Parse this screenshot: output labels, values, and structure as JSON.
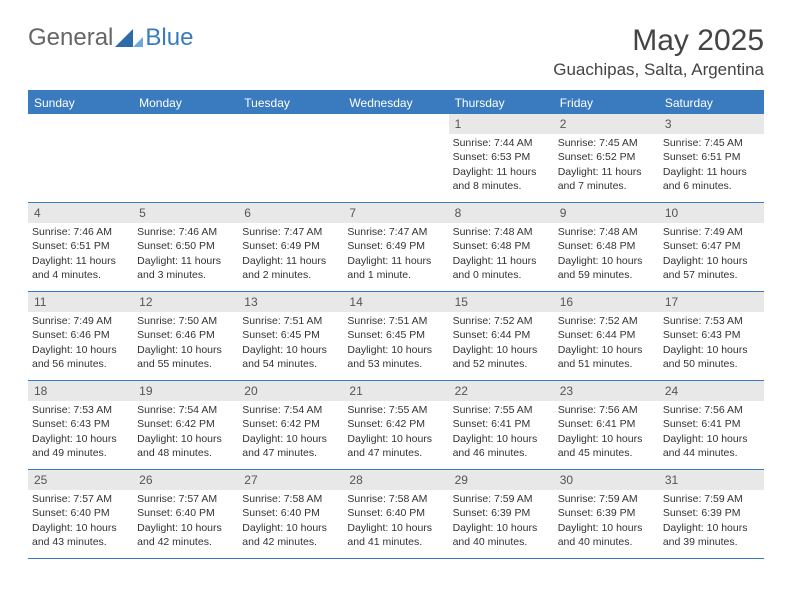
{
  "logo": {
    "general": "General",
    "blue": "Blue"
  },
  "title": {
    "month": "May 2025",
    "location": "Guachipas, Salta, Argentina"
  },
  "colors": {
    "accent": "#3a7bbf",
    "header_bg": "#3a7bbf",
    "daynum_bg": "#e8e8e8"
  },
  "weekdays": [
    "Sunday",
    "Monday",
    "Tuesday",
    "Wednesday",
    "Thursday",
    "Friday",
    "Saturday"
  ],
  "weeks": [
    [
      {
        "num": "",
        "sunrise": "",
        "sunset": "",
        "daylight": ""
      },
      {
        "num": "",
        "sunrise": "",
        "sunset": "",
        "daylight": ""
      },
      {
        "num": "",
        "sunrise": "",
        "sunset": "",
        "daylight": ""
      },
      {
        "num": "",
        "sunrise": "",
        "sunset": "",
        "daylight": ""
      },
      {
        "num": "1",
        "sunrise": "Sunrise: 7:44 AM",
        "sunset": "Sunset: 6:53 PM",
        "daylight": "Daylight: 11 hours and 8 minutes."
      },
      {
        "num": "2",
        "sunrise": "Sunrise: 7:45 AM",
        "sunset": "Sunset: 6:52 PM",
        "daylight": "Daylight: 11 hours and 7 minutes."
      },
      {
        "num": "3",
        "sunrise": "Sunrise: 7:45 AM",
        "sunset": "Sunset: 6:51 PM",
        "daylight": "Daylight: 11 hours and 6 minutes."
      }
    ],
    [
      {
        "num": "4",
        "sunrise": "Sunrise: 7:46 AM",
        "sunset": "Sunset: 6:51 PM",
        "daylight": "Daylight: 11 hours and 4 minutes."
      },
      {
        "num": "5",
        "sunrise": "Sunrise: 7:46 AM",
        "sunset": "Sunset: 6:50 PM",
        "daylight": "Daylight: 11 hours and 3 minutes."
      },
      {
        "num": "6",
        "sunrise": "Sunrise: 7:47 AM",
        "sunset": "Sunset: 6:49 PM",
        "daylight": "Daylight: 11 hours and 2 minutes."
      },
      {
        "num": "7",
        "sunrise": "Sunrise: 7:47 AM",
        "sunset": "Sunset: 6:49 PM",
        "daylight": "Daylight: 11 hours and 1 minute."
      },
      {
        "num": "8",
        "sunrise": "Sunrise: 7:48 AM",
        "sunset": "Sunset: 6:48 PM",
        "daylight": "Daylight: 11 hours and 0 minutes."
      },
      {
        "num": "9",
        "sunrise": "Sunrise: 7:48 AM",
        "sunset": "Sunset: 6:48 PM",
        "daylight": "Daylight: 10 hours and 59 minutes."
      },
      {
        "num": "10",
        "sunrise": "Sunrise: 7:49 AM",
        "sunset": "Sunset: 6:47 PM",
        "daylight": "Daylight: 10 hours and 57 minutes."
      }
    ],
    [
      {
        "num": "11",
        "sunrise": "Sunrise: 7:49 AM",
        "sunset": "Sunset: 6:46 PM",
        "daylight": "Daylight: 10 hours and 56 minutes."
      },
      {
        "num": "12",
        "sunrise": "Sunrise: 7:50 AM",
        "sunset": "Sunset: 6:46 PM",
        "daylight": "Daylight: 10 hours and 55 minutes."
      },
      {
        "num": "13",
        "sunrise": "Sunrise: 7:51 AM",
        "sunset": "Sunset: 6:45 PM",
        "daylight": "Daylight: 10 hours and 54 minutes."
      },
      {
        "num": "14",
        "sunrise": "Sunrise: 7:51 AM",
        "sunset": "Sunset: 6:45 PM",
        "daylight": "Daylight: 10 hours and 53 minutes."
      },
      {
        "num": "15",
        "sunrise": "Sunrise: 7:52 AM",
        "sunset": "Sunset: 6:44 PM",
        "daylight": "Daylight: 10 hours and 52 minutes."
      },
      {
        "num": "16",
        "sunrise": "Sunrise: 7:52 AM",
        "sunset": "Sunset: 6:44 PM",
        "daylight": "Daylight: 10 hours and 51 minutes."
      },
      {
        "num": "17",
        "sunrise": "Sunrise: 7:53 AM",
        "sunset": "Sunset: 6:43 PM",
        "daylight": "Daylight: 10 hours and 50 minutes."
      }
    ],
    [
      {
        "num": "18",
        "sunrise": "Sunrise: 7:53 AM",
        "sunset": "Sunset: 6:43 PM",
        "daylight": "Daylight: 10 hours and 49 minutes."
      },
      {
        "num": "19",
        "sunrise": "Sunrise: 7:54 AM",
        "sunset": "Sunset: 6:42 PM",
        "daylight": "Daylight: 10 hours and 48 minutes."
      },
      {
        "num": "20",
        "sunrise": "Sunrise: 7:54 AM",
        "sunset": "Sunset: 6:42 PM",
        "daylight": "Daylight: 10 hours and 47 minutes."
      },
      {
        "num": "21",
        "sunrise": "Sunrise: 7:55 AM",
        "sunset": "Sunset: 6:42 PM",
        "daylight": "Daylight: 10 hours and 47 minutes."
      },
      {
        "num": "22",
        "sunrise": "Sunrise: 7:55 AM",
        "sunset": "Sunset: 6:41 PM",
        "daylight": "Daylight: 10 hours and 46 minutes."
      },
      {
        "num": "23",
        "sunrise": "Sunrise: 7:56 AM",
        "sunset": "Sunset: 6:41 PM",
        "daylight": "Daylight: 10 hours and 45 minutes."
      },
      {
        "num": "24",
        "sunrise": "Sunrise: 7:56 AM",
        "sunset": "Sunset: 6:41 PM",
        "daylight": "Daylight: 10 hours and 44 minutes."
      }
    ],
    [
      {
        "num": "25",
        "sunrise": "Sunrise: 7:57 AM",
        "sunset": "Sunset: 6:40 PM",
        "daylight": "Daylight: 10 hours and 43 minutes."
      },
      {
        "num": "26",
        "sunrise": "Sunrise: 7:57 AM",
        "sunset": "Sunset: 6:40 PM",
        "daylight": "Daylight: 10 hours and 42 minutes."
      },
      {
        "num": "27",
        "sunrise": "Sunrise: 7:58 AM",
        "sunset": "Sunset: 6:40 PM",
        "daylight": "Daylight: 10 hours and 42 minutes."
      },
      {
        "num": "28",
        "sunrise": "Sunrise: 7:58 AM",
        "sunset": "Sunset: 6:40 PM",
        "daylight": "Daylight: 10 hours and 41 minutes."
      },
      {
        "num": "29",
        "sunrise": "Sunrise: 7:59 AM",
        "sunset": "Sunset: 6:39 PM",
        "daylight": "Daylight: 10 hours and 40 minutes."
      },
      {
        "num": "30",
        "sunrise": "Sunrise: 7:59 AM",
        "sunset": "Sunset: 6:39 PM",
        "daylight": "Daylight: 10 hours and 40 minutes."
      },
      {
        "num": "31",
        "sunrise": "Sunrise: 7:59 AM",
        "sunset": "Sunset: 6:39 PM",
        "daylight": "Daylight: 10 hours and 39 minutes."
      }
    ]
  ]
}
